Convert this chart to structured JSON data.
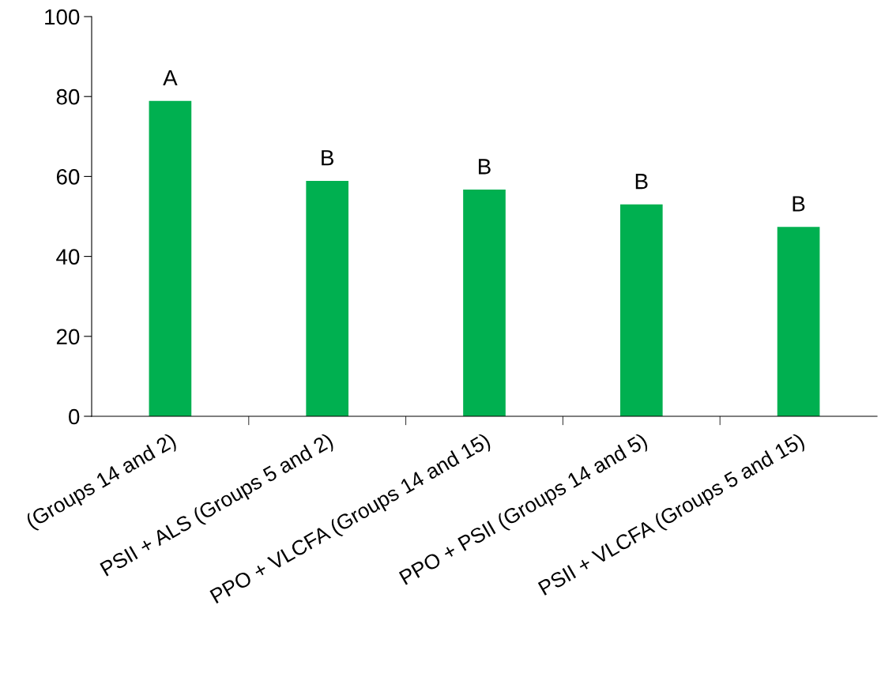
{
  "chart_data": {
    "type": "bar",
    "categories": [
      "(Groups 14 and 2)",
      "PSII + ALS (Groups 5 and 2)",
      "PPO + VLCFA (Groups 14 and 15)",
      "PPO + PSII (Groups 14 and 5)",
      "PSII + VLCFA (Groups 5 and 15)"
    ],
    "values": [
      78.9,
      58.9,
      56.7,
      53.0,
      47.4
    ],
    "color": "#00b050",
    "ylim": [
      0,
      100
    ],
    "yticks": [
      0,
      20,
      40,
      60,
      80,
      100
    ],
    "grid": false,
    "legend": false,
    "annotations": [
      {
        "text": "A",
        "x": "(Groups 14 and 2)",
        "y": 78.9
      },
      {
        "text": "B",
        "x": "PSII + ALS (Groups 5 and 2)",
        "y": 58.9
      },
      {
        "text": "B",
        "x": "PPO + VLCFA (Groups 14 and 15)",
        "y": 56.7
      },
      {
        "text": "B",
        "x": "PPO + PSII (Groups 14 and 5)",
        "y": 53.0
      },
      {
        "text": "B",
        "x": "PSII + VLCFA (Groups 5 and 15)",
        "y": 47.4
      }
    ]
  }
}
